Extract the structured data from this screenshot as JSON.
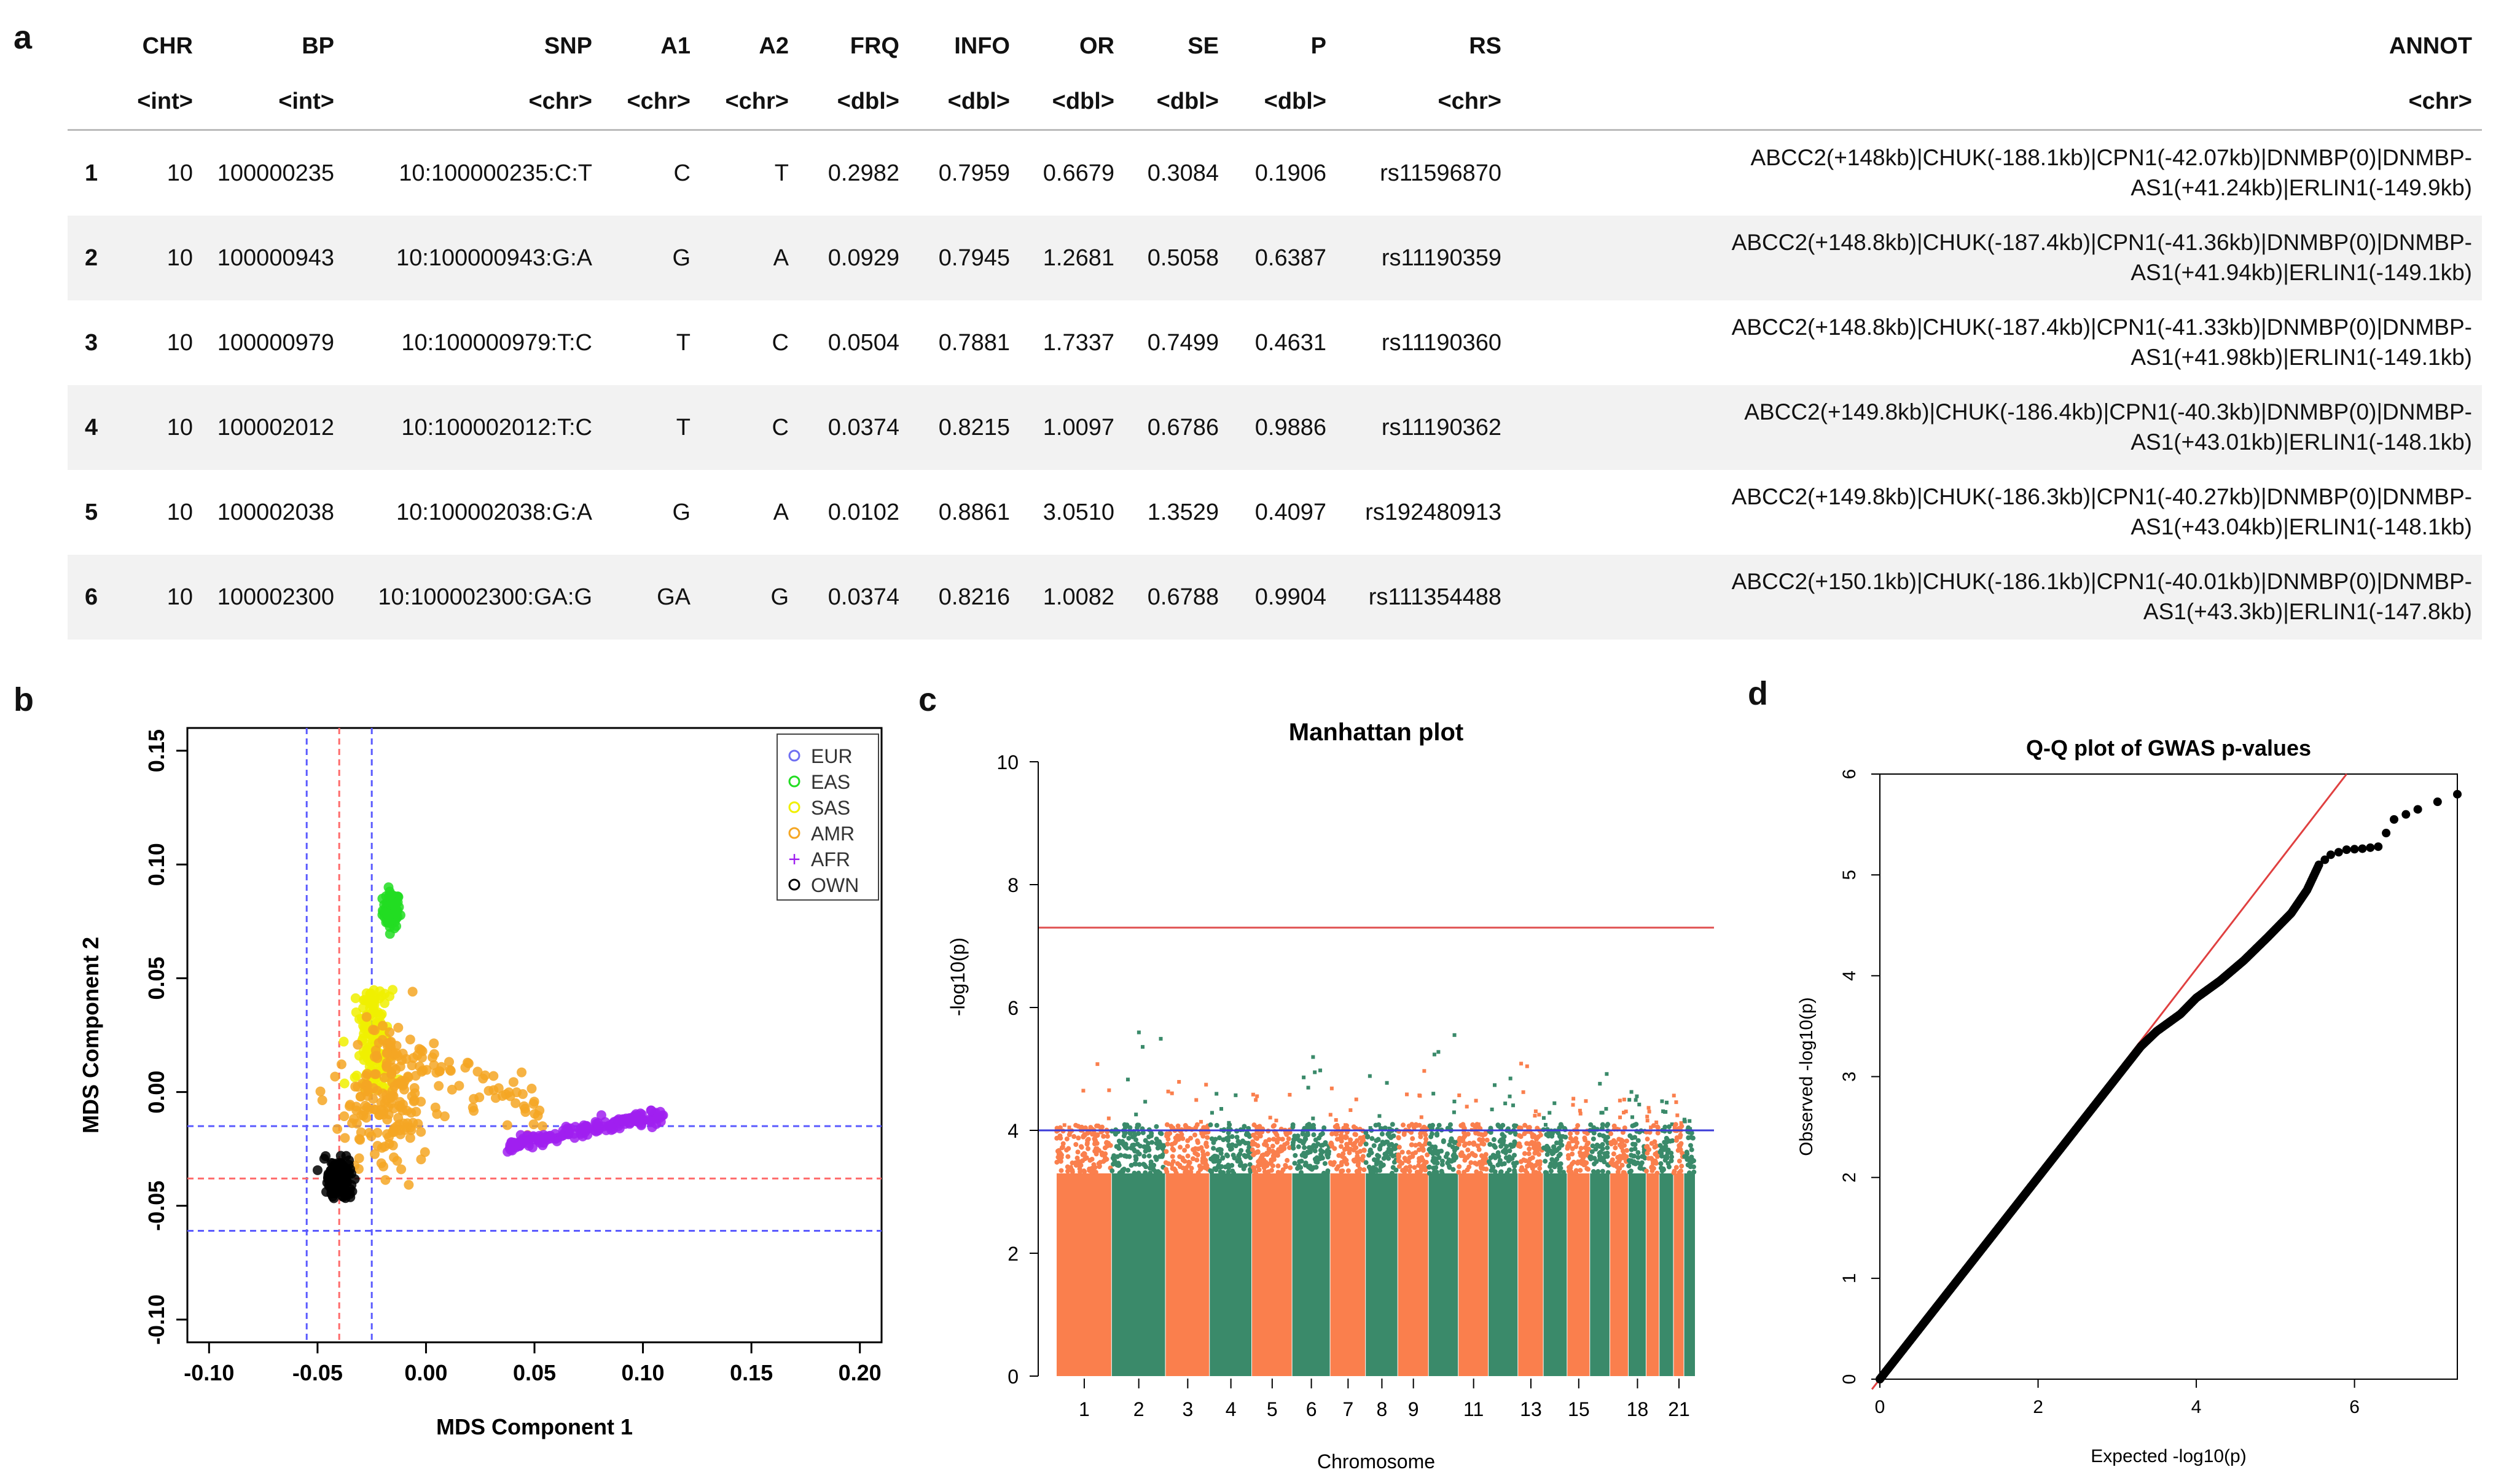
{
  "panel_labels": {
    "a": "a",
    "b": "b",
    "c": "c",
    "d": "d"
  },
  "table": {
    "columns": [
      {
        "name": "",
        "type": ""
      },
      {
        "name": "CHR",
        "type": "<int>"
      },
      {
        "name": "BP",
        "type": "<int>"
      },
      {
        "name": "SNP",
        "type": "<chr>"
      },
      {
        "name": "A1",
        "type": "<chr>"
      },
      {
        "name": "A2",
        "type": "<chr>"
      },
      {
        "name": "FRQ",
        "type": "<dbl>"
      },
      {
        "name": "INFO",
        "type": "<dbl>"
      },
      {
        "name": "OR",
        "type": "<dbl>"
      },
      {
        "name": "SE",
        "type": "<dbl>"
      },
      {
        "name": "P",
        "type": "<dbl>"
      },
      {
        "name": "RS",
        "type": "<chr>"
      },
      {
        "name": "ANNOT",
        "type": "<chr>"
      }
    ],
    "rows": [
      [
        "1",
        "10",
        "100000235",
        "10:100000235:C:T",
        "C",
        "T",
        "0.2982",
        "0.7959",
        "0.6679",
        "0.3084",
        "0.1906",
        "rs11596870",
        "ABCC2(+148kb)|CHUK(-188.1kb)|CPN1(-42.07kb)|DNMBP(0)|DNMBP-AS1(+41.24kb)|ERLIN1(-149.9kb)"
      ],
      [
        "2",
        "10",
        "100000943",
        "10:100000943:G:A",
        "G",
        "A",
        "0.0929",
        "0.7945",
        "1.2681",
        "0.5058",
        "0.6387",
        "rs11190359",
        "ABCC2(+148.8kb)|CHUK(-187.4kb)|CPN1(-41.36kb)|DNMBP(0)|DNMBP-AS1(+41.94kb)|ERLIN1(-149.1kb)"
      ],
      [
        "3",
        "10",
        "100000979",
        "10:100000979:T:C",
        "T",
        "C",
        "0.0504",
        "0.7881",
        "1.7337",
        "0.7499",
        "0.4631",
        "rs11190360",
        "ABCC2(+148.8kb)|CHUK(-187.4kb)|CPN1(-41.33kb)|DNMBP(0)|DNMBP-AS1(+41.98kb)|ERLIN1(-149.1kb)"
      ],
      [
        "4",
        "10",
        "100002012",
        "10:100002012:T:C",
        "T",
        "C",
        "0.0374",
        "0.8215",
        "1.0097",
        "0.6786",
        "0.9886",
        "rs11190362",
        "ABCC2(+149.8kb)|CHUK(-186.4kb)|CPN1(-40.3kb)|DNMBP(0)|DNMBP-AS1(+43.01kb)|ERLIN1(-148.1kb)"
      ],
      [
        "5",
        "10",
        "100002038",
        "10:100002038:G:A",
        "G",
        "A",
        "0.0102",
        "0.8861",
        "3.0510",
        "1.3529",
        "0.4097",
        "rs192480913",
        "ABCC2(+149.8kb)|CHUK(-186.3kb)|CPN1(-40.27kb)|DNMBP(0)|DNMBP-AS1(+43.04kb)|ERLIN1(-148.1kb)"
      ],
      [
        "6",
        "10",
        "100002300",
        "10:100002300:GA:G",
        "GA",
        "G",
        "0.0374",
        "0.8216",
        "1.0082",
        "0.6788",
        "0.9904",
        "rs111354488",
        "ABCC2(+150.1kb)|CHUK(-186.1kb)|CPN1(-40.01kb)|DNMBP(0)|DNMBP-AS1(+43.3kb)|ERLIN1(-147.8kb)"
      ]
    ]
  },
  "colors": {
    "EUR": "#6f6ff2",
    "EAS": "#22dd22",
    "SAS": "#f0f000",
    "AMR": "#f5a623",
    "AFR": "#a020f0",
    "OWN": "#000000",
    "manhattan_odd": "#fa7f4d",
    "manhattan_even": "#3a8a6a",
    "genomewide_line": "#e05050",
    "suggestive_line": "#3b3bd8",
    "guide_blue": "#5b5bff",
    "guide_red": "#ff6b6b",
    "qq_line": "#e04040"
  },
  "chart_data": [
    {
      "type": "scatter",
      "title": "",
      "xlabel": "MDS Component 1",
      "ylabel": "MDS Component 2",
      "xlim": [
        -0.11,
        0.21
      ],
      "ylim": [
        -0.11,
        0.16
      ],
      "xticks": [
        "-0.10",
        "-0.05",
        "0.00",
        "0.05",
        "0.10",
        "0.15",
        "0.20"
      ],
      "xtick_values": [
        -0.1,
        -0.05,
        0.0,
        0.05,
        0.1,
        0.15,
        0.2
      ],
      "yticks": [
        "-0.10",
        "-0.05",
        "0.00",
        "0.05",
        "0.10",
        "0.15"
      ],
      "ytick_values": [
        -0.1,
        -0.05,
        0.0,
        0.05,
        0.1,
        0.15
      ],
      "legend": {
        "position": "top-right",
        "entries": [
          {
            "label": "EUR",
            "marker": "o"
          },
          {
            "label": "EAS",
            "marker": "o"
          },
          {
            "label": "SAS",
            "marker": "o"
          },
          {
            "label": "AMR",
            "marker": "o"
          },
          {
            "label": "AFR",
            "marker": "+"
          },
          {
            "label": "OWN",
            "marker": "o"
          }
        ]
      },
      "vlines": [
        {
          "x": -0.055,
          "color": "blue"
        },
        {
          "x": -0.04,
          "color": "red"
        },
        {
          "x": -0.025,
          "color": "blue"
        }
      ],
      "hlines": [
        {
          "y": -0.015,
          "color": "blue"
        },
        {
          "y": -0.038,
          "color": "red"
        },
        {
          "y": -0.061,
          "color": "blue"
        }
      ],
      "clusters": [
        {
          "name": "EAS",
          "center": [
            -0.016,
            0.08
          ],
          "spread": [
            0.002,
            0.004
          ],
          "n": 90
        },
        {
          "name": "SAS",
          "center": [
            -0.024,
            0.015
          ],
          "spread": [
            0.005,
            0.015
          ],
          "n": 140
        },
        {
          "name": "AMR",
          "center": [
            -0.02,
            -0.005
          ],
          "spread": [
            0.012,
            0.016
          ],
          "n": 240
        },
        {
          "name": "AFR",
          "center": [
            0.09,
            -0.012
          ],
          "spread": [
            0.014,
            0.002
          ],
          "n": 160
        },
        {
          "name": "OWN",
          "center": [
            -0.04,
            -0.038
          ],
          "spread": [
            0.003,
            0.004
          ],
          "n": 160
        }
      ]
    },
    {
      "type": "scatter",
      "title": "Manhattan plot",
      "xlabel": "Chromosome",
      "ylabel": "-log10(p)",
      "ylim": [
        0,
        10
      ],
      "yticks": [
        0,
        2,
        4,
        6,
        8,
        10
      ],
      "xtick_labels": [
        "1",
        "2",
        "3",
        "4",
        "5",
        "6",
        "7",
        "8",
        "9",
        "11",
        "13",
        "15",
        "18",
        "21"
      ],
      "xtick_chromosomes": [
        1,
        2,
        3,
        4,
        5,
        6,
        7,
        8,
        9,
        11,
        13,
        15,
        18,
        21
      ],
      "chromosomes": [
        1,
        2,
        3,
        4,
        5,
        6,
        7,
        8,
        9,
        10,
        11,
        12,
        13,
        14,
        15,
        16,
        17,
        18,
        19,
        20,
        21,
        22
      ],
      "chromosome_max": [
        5.3,
        5.8,
        5.1,
        4.7,
        4.6,
        5.2,
        4.9,
        5.0,
        5.4,
        5.6,
        4.8,
        4.9,
        5.1,
        4.5,
        4.7,
        5.0,
        4.6,
        4.8,
        4.4,
        4.5,
        4.6,
        4.3
      ],
      "genome_wide_threshold": 7.3,
      "suggestive_threshold": 4.0
    },
    {
      "type": "scatter",
      "title": "Q-Q plot of GWAS p-values",
      "xlabel": "Expected  -log10(p)",
      "ylabel": "Observed  -log10(p)",
      "xlim": [
        0,
        7.3
      ],
      "ylim": [
        0,
        6
      ],
      "xticks": [
        0,
        2,
        4,
        6
      ],
      "yticks": [
        0,
        1,
        2,
        3,
        4,
        5,
        6
      ],
      "reference_line": "y = x",
      "points": [
        [
          0.0,
          0.0
        ],
        [
          0.5,
          0.5
        ],
        [
          1.0,
          1.0
        ],
        [
          1.5,
          1.5
        ],
        [
          2.0,
          2.0
        ],
        [
          2.5,
          2.5
        ],
        [
          3.0,
          3.0
        ],
        [
          3.3,
          3.3
        ],
        [
          3.5,
          3.45
        ],
        [
          3.8,
          3.62
        ],
        [
          4.0,
          3.78
        ],
        [
          4.3,
          3.95
        ],
        [
          4.6,
          4.15
        ],
        [
          4.9,
          4.38
        ],
        [
          5.2,
          4.62
        ],
        [
          5.4,
          4.85
        ],
        [
          5.55,
          5.1
        ],
        [
          5.7,
          5.2
        ],
        [
          5.9,
          5.25
        ],
        [
          6.1,
          5.26
        ],
        [
          6.3,
          5.28
        ],
        [
          6.5,
          5.55
        ],
        [
          6.8,
          5.65
        ],
        [
          7.3,
          5.8
        ]
      ]
    }
  ]
}
